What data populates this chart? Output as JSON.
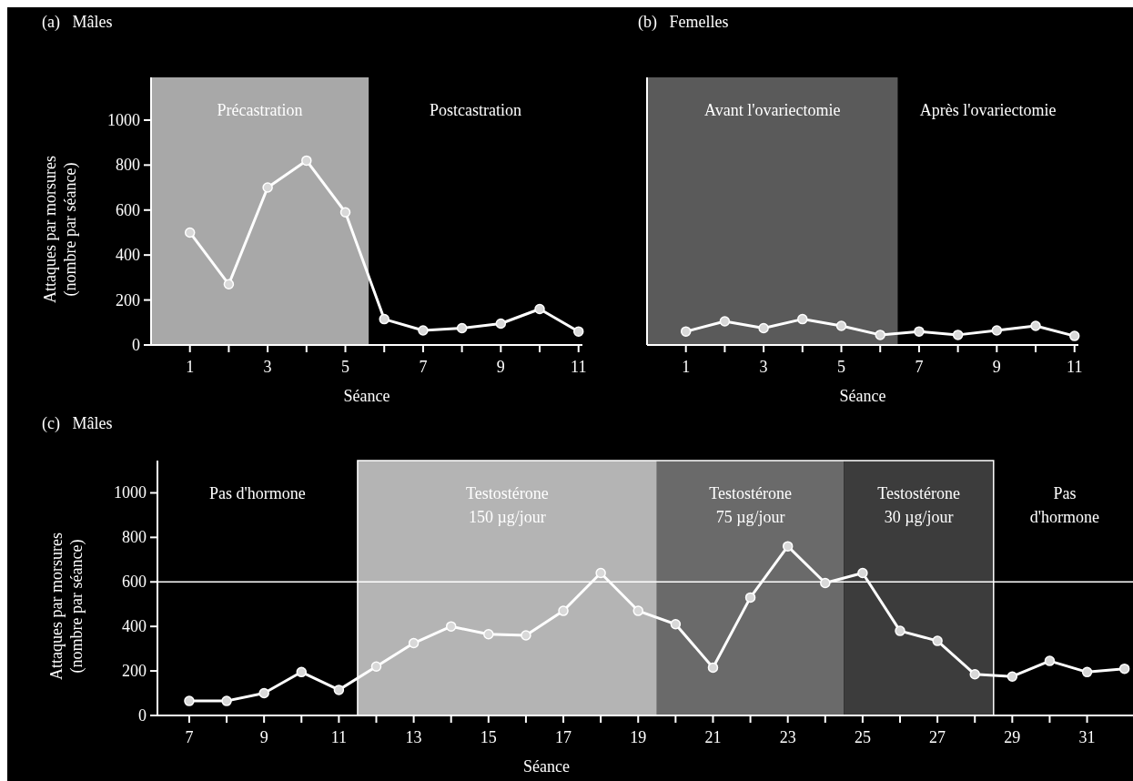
{
  "chart_data": [
    {
      "type": "line",
      "title": "(a)   Mâles",
      "xlabel": "Séance",
      "ylabel": "Attaques par morsures\n(nombre par séance)",
      "x": [
        1,
        2,
        3,
        4,
        5,
        6,
        7,
        8,
        9,
        10,
        11
      ],
      "series": [
        {
          "color": "#ffffff",
          "values": [
            500,
            270,
            700,
            820,
            590,
            115,
            65,
            75,
            95,
            160,
            60
          ]
        }
      ],
      "xlim": [
        0,
        11.1
      ],
      "ylim": [
        0,
        1190
      ],
      "xticks": [
        1,
        {
          "value": 2,
          "label": null
        },
        3,
        {
          "value": 4,
          "label": null
        },
        5,
        {
          "value": 6,
          "label": null
        },
        7,
        {
          "value": 8,
          "label": null
        },
        9,
        {
          "value": 10,
          "label": null
        },
        11
      ],
      "yticks": [
        0,
        200,
        400,
        600,
        800,
        1000
      ],
      "bands": [
        {
          "axis": "x",
          "from": 0,
          "to": 5.6,
          "label": "Précastration",
          "color": "#a8a8a8"
        }
      ],
      "annotations": [
        "Postcastration"
      ],
      "marker": "circle"
    },
    {
      "type": "line",
      "title": "(b)   Femelles",
      "xlabel": "Séance",
      "x": [
        1,
        2,
        3,
        4,
        5,
        6,
        7,
        8,
        9,
        10,
        11
      ],
      "series": [
        {
          "color": "#ffffff",
          "values": [
            60,
            105,
            75,
            115,
            85,
            45,
            60,
            45,
            65,
            85,
            40
          ]
        }
      ],
      "xlim": [
        0,
        11.1
      ],
      "ylim": [
        0,
        1190
      ],
      "xticks": [
        1,
        {
          "value": 2,
          "label": null
        },
        3,
        {
          "value": 4,
          "label": null
        },
        5,
        {
          "value": 6,
          "label": null
        },
        7,
        {
          "value": 8,
          "label": null
        },
        9,
        {
          "value": 10,
          "label": null
        },
        11
      ],
      "tick_labels": "x",
      "bands": [
        {
          "axis": "x",
          "from": 0,
          "to": 6.45,
          "label": "Avant l'ovariectomie",
          "color": "#5a5a5a"
        }
      ],
      "annotations": [
        "Après l'ovariectomie"
      ],
      "marker": "circle"
    },
    {
      "type": "line",
      "title": "(c)   Mâles",
      "xlabel": "Séance",
      "ylabel": "Attaques par morsures\n(nombre par séance)",
      "x": [
        7,
        8,
        9,
        10,
        11,
        12,
        13,
        14,
        15,
        16,
        17,
        18,
        19,
        20,
        21,
        22,
        23,
        24,
        25,
        26,
        27,
        28,
        29,
        30,
        31,
        32
      ],
      "series": [
        {
          "color": "#ffffff",
          "values": [
            65,
            65,
            100,
            195,
            115,
            220,
            325,
            400,
            365,
            360,
            470,
            640,
            470,
            410,
            215,
            530,
            760,
            595,
            640,
            380,
            335,
            185,
            175,
            245,
            195,
            210
          ]
        }
      ],
      "xlim": [
        6.15,
        32.3
      ],
      "ylim": [
        0,
        1145
      ],
      "xticks": [
        7,
        {
          "value": 8,
          "label": null
        },
        9,
        {
          "value": 10,
          "label": null
        },
        11,
        {
          "value": 12,
          "label": null
        },
        13,
        {
          "value": 14,
          "label": null
        },
        15,
        {
          "value": 16,
          "label": null
        },
        17,
        {
          "value": 18,
          "label": null
        },
        19,
        {
          "value": 20,
          "label": null
        },
        21,
        {
          "value": 22,
          "label": null
        },
        23,
        {
          "value": 24,
          "label": null
        },
        25,
        {
          "value": 26,
          "label": null
        },
        27,
        {
          "value": 28,
          "label": null
        },
        29,
        {
          "value": 30,
          "label": null
        },
        31
      ],
      "yticks": [
        0,
        200,
        400,
        600,
        800,
        1000
      ],
      "bands": [
        {
          "axis": "x",
          "from": 11.5,
          "to": 19.5,
          "label": "Testostérone\n150 µg/jour",
          "color": "#b4b4b4"
        },
        {
          "axis": "x",
          "from": 19.5,
          "to": 24.5,
          "label": "Testostérone\n75 µg/jour",
          "color": "#6a6a6a"
        },
        {
          "axis": "x",
          "from": 24.5,
          "to": 28.5,
          "label": "Testostérone\n30 µg/jour",
          "color": "#3c3c3c"
        }
      ],
      "ref_lines": [
        {
          "axis": "y",
          "value": 600,
          "color": "#ffffff"
        }
      ],
      "annotations": [
        "Pas d'hormone",
        "Pas\nd'hormone"
      ],
      "marker": "circle"
    }
  ]
}
